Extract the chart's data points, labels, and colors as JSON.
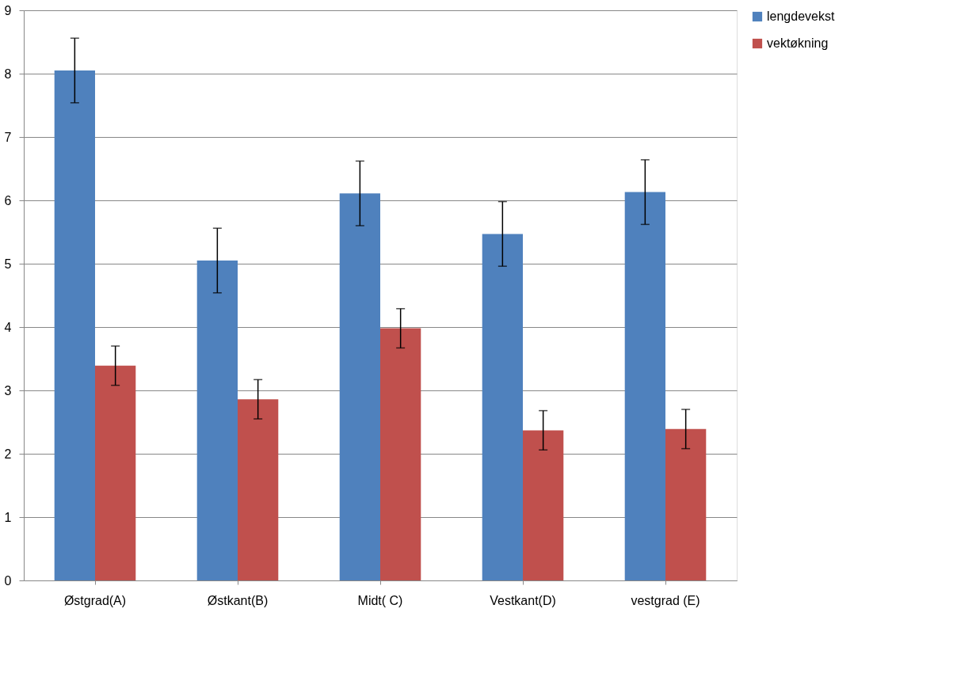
{
  "chart_data": {
    "type": "bar",
    "categories": [
      "Østgrad(A)",
      "Østkant(B)",
      "Midt( C)",
      "Vestkant(D)",
      "vestgrad (E)"
    ],
    "series": [
      {
        "name": "lengdevekst",
        "color": "#4f81bd",
        "values": [
          8.05,
          5.05,
          6.11,
          5.47,
          6.13
        ],
        "errors": [
          0.51,
          0.51,
          0.51,
          0.51,
          0.51
        ]
      },
      {
        "name": "vektøkning",
        "color": "#c0504d",
        "values": [
          3.39,
          2.86,
          3.98,
          2.37,
          2.39
        ],
        "errors": [
          0.31,
          0.31,
          0.31,
          0.31,
          0.31
        ]
      }
    ],
    "ylim": [
      0,
      9
    ],
    "yticks": [
      0,
      1,
      2,
      3,
      4,
      5,
      6,
      7,
      8,
      9
    ],
    "grid": "y",
    "legend": "right"
  }
}
